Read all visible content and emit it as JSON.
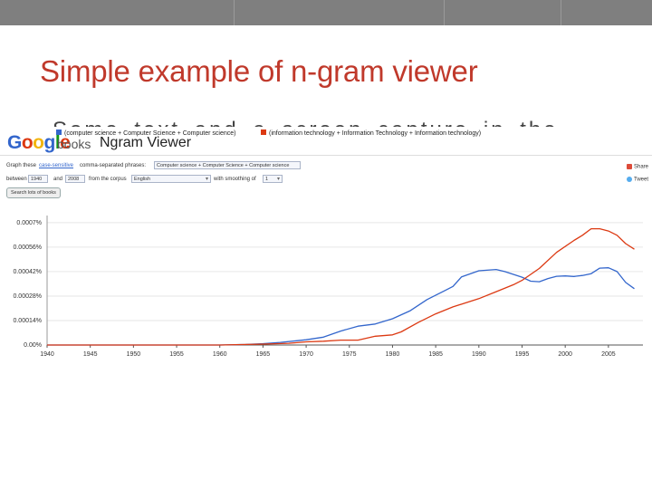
{
  "slide": {
    "title": "Simple example of n-gram viewer",
    "bullet_fragment": "Some text and a screen capture in the book for notion"
  },
  "app": {
    "logo_letters": [
      {
        "ch": "G",
        "color": "#3366cc"
      },
      {
        "ch": "o",
        "color": "#dc3912"
      },
      {
        "ch": "o",
        "color": "#f2b50f"
      },
      {
        "ch": "g",
        "color": "#3366cc"
      },
      {
        "ch": "l",
        "color": "#109618"
      },
      {
        "ch": "e",
        "color": "#dc3912"
      }
    ],
    "books_label": "books",
    "product_title": "Ngram Viewer"
  },
  "form": {
    "graph_these": "Graph these",
    "case_sensitive": "case-sensitive",
    "comma_separated": "comma-separated phrases:",
    "phrases_value": "Computer science + Computer Science + Computer science",
    "between_label": "between",
    "year_start": "1940",
    "and_label": "and",
    "year_end": "2008",
    "from_corpus_label": "from the corpus",
    "corpus_value": "English",
    "smoothing_label": "with smoothing of",
    "smoothing_value": "1",
    "search_button": "Search lots of books"
  },
  "share": {
    "google_plus_label": "Share",
    "twitter_label": "Tweet",
    "google_plus_icon": "google-plus-icon",
    "twitter_icon": "twitter-icon"
  },
  "chart_data": {
    "type": "line",
    "title": "",
    "xlabel": "",
    "ylabel": "",
    "xlim": [
      1940,
      2009
    ],
    "ylim": [
      0,
      0.00072
    ],
    "x_ticks": [
      1940,
      1945,
      1950,
      1955,
      1960,
      1965,
      1970,
      1975,
      1980,
      1985,
      1990,
      1995,
      2000,
      2005
    ],
    "y_ticks": [
      {
        "value": 0,
        "label": "0.00%"
      },
      {
        "value": 0.00014,
        "label": "0.00014%"
      },
      {
        "value": 0.00028,
        "label": "0.00028%"
      },
      {
        "value": 0.00042,
        "label": "0.00042%"
      },
      {
        "value": 0.00056,
        "label": "0.00056%"
      },
      {
        "value": 0.0007,
        "label": "0.0007%"
      }
    ],
    "grid": true,
    "legend_position": "top",
    "series": [
      {
        "name": "(computer science + Computer Science + Computer science)",
        "color": "#3366cc",
        "points": [
          [
            1940,
            0
          ],
          [
            1950,
            0
          ],
          [
            1960,
            0
          ],
          [
            1963,
            3e-06
          ],
          [
            1965,
            8e-06
          ],
          [
            1967,
            1.5e-05
          ],
          [
            1969,
            2.5e-05
          ],
          [
            1970,
            3e-05
          ],
          [
            1972,
            4.5e-05
          ],
          [
            1974,
            8e-05
          ],
          [
            1976,
            0.000108
          ],
          [
            1978,
            0.00012
          ],
          [
            1980,
            0.00015
          ],
          [
            1982,
            0.000195
          ],
          [
            1984,
            0.00026
          ],
          [
            1986,
            0.00031
          ],
          [
            1987,
            0.000335
          ],
          [
            1988,
            0.00039
          ],
          [
            1990,
            0.000425
          ],
          [
            1992,
            0.000432
          ],
          [
            1993,
            0.00042
          ],
          [
            1995,
            0.000388
          ],
          [
            1996,
            0.000365
          ],
          [
            1997,
            0.000362
          ],
          [
            1998,
            0.00038
          ],
          [
            1999,
            0.000393
          ],
          [
            2000,
            0.000395
          ],
          [
            2001,
            0.000392
          ],
          [
            2002,
            0.000398
          ],
          [
            2003,
            0.000408
          ],
          [
            2004,
            0.00044
          ],
          [
            2005,
            0.000442
          ],
          [
            2006,
            0.00042
          ],
          [
            2007,
            0.000358
          ],
          [
            2008,
            0.000322
          ]
        ]
      },
      {
        "name": "(information technology + Information Technology + Information technology)",
        "color": "#dc3912",
        "points": [
          [
            1940,
            0
          ],
          [
            1950,
            0
          ],
          [
            1960,
            0
          ],
          [
            1965,
            5e-06
          ],
          [
            1968,
            1e-05
          ],
          [
            1970,
            1.8e-05
          ],
          [
            1972,
            2.2e-05
          ],
          [
            1974,
            2.8e-05
          ],
          [
            1976,
            2.8e-05
          ],
          [
            1978,
            5e-05
          ],
          [
            1980,
            5.8e-05
          ],
          [
            1981,
            7.5e-05
          ],
          [
            1983,
            0.00013
          ],
          [
            1985,
            0.000178
          ],
          [
            1987,
            0.000218
          ],
          [
            1990,
            0.000265
          ],
          [
            1992,
            0.000305
          ],
          [
            1994,
            0.000345
          ],
          [
            1995,
            0.00037
          ],
          [
            1997,
            0.000438
          ],
          [
            1999,
            0.00053
          ],
          [
            2001,
            0.000598
          ],
          [
            2002,
            0.000628
          ],
          [
            2003,
            0.000665
          ],
          [
            2004,
            0.000665
          ],
          [
            2005,
            0.000652
          ],
          [
            2006,
            0.000628
          ],
          [
            2007,
            0.00058
          ],
          [
            2008,
            0.000548
          ]
        ]
      }
    ]
  }
}
